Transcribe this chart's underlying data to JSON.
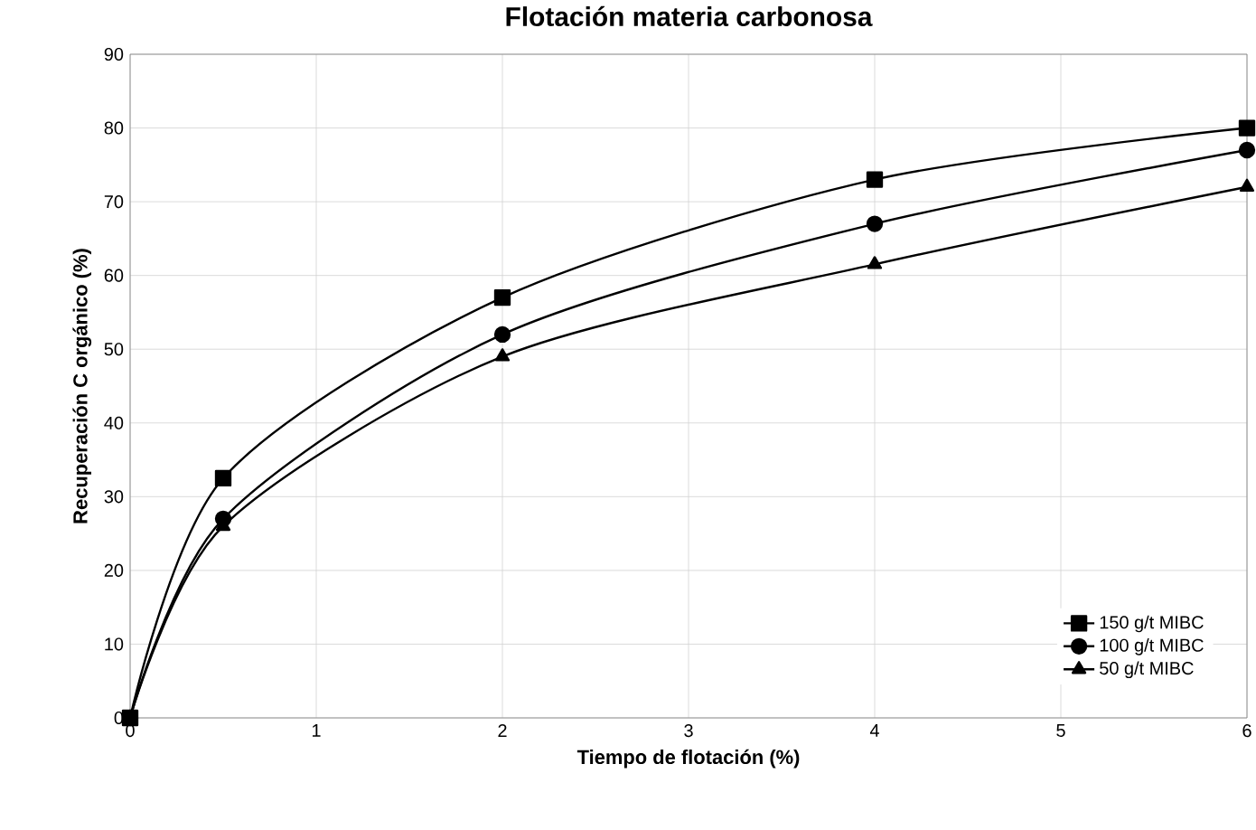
{
  "chart_data": {
    "type": "line",
    "title": "Flotación materia carbonosa",
    "xlabel": "Tiempo de flotación (%)",
    "ylabel": "Recuperación C orgánico (%)",
    "x": [
      0,
      0.5,
      2,
      4,
      6
    ],
    "series": [
      {
        "name": "150 g/t MIBC",
        "color": "#000000",
        "marker": "square",
        "values": [
          0,
          32.5,
          57,
          73,
          80
        ]
      },
      {
        "name": "100 g/t MIBC",
        "color": "#000000",
        "marker": "circle",
        "values": [
          0,
          27,
          52,
          67,
          77
        ]
      },
      {
        "name": "50 g/t MIBC",
        "color": "#000000",
        "marker": "triangle",
        "values": [
          0,
          26,
          49,
          61.5,
          72
        ]
      }
    ],
    "xlim": [
      0,
      6
    ],
    "ylim": [
      0,
      90
    ],
    "xticks": [
      0,
      1,
      2,
      3,
      4,
      5,
      6
    ],
    "yticks": [
      0,
      10,
      20,
      30,
      40,
      50,
      60,
      70,
      80,
      90
    ],
    "grid": true,
    "legend": "bottom right",
    "line_style": "solid"
  }
}
